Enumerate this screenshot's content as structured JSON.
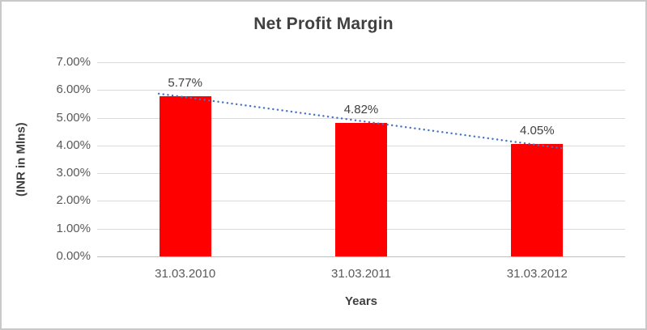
{
  "chart_data": {
    "type": "bar",
    "title": "Net Profit Margin",
    "categories": [
      "31.03.2010",
      "31.03.2011",
      "31.03.2012"
    ],
    "values": [
      5.77,
      4.82,
      4.05
    ],
    "data_labels": [
      "5.77%",
      "4.82%",
      "4.05%"
    ],
    "xlabel": "Years",
    "ylabel": "(INR in Mlns)",
    "ylim": [
      0,
      7
    ],
    "ytick_labels": [
      "7.00%",
      "6.00%",
      "5.00%",
      "4.00%",
      "3.00%",
      "2.00%",
      "1.00%",
      "0.00%"
    ],
    "grid": true,
    "legend": "none",
    "bar_color": "#ff0000",
    "trendline": {
      "type": "linear",
      "style": "dotted",
      "color": "#4472c4"
    }
  }
}
